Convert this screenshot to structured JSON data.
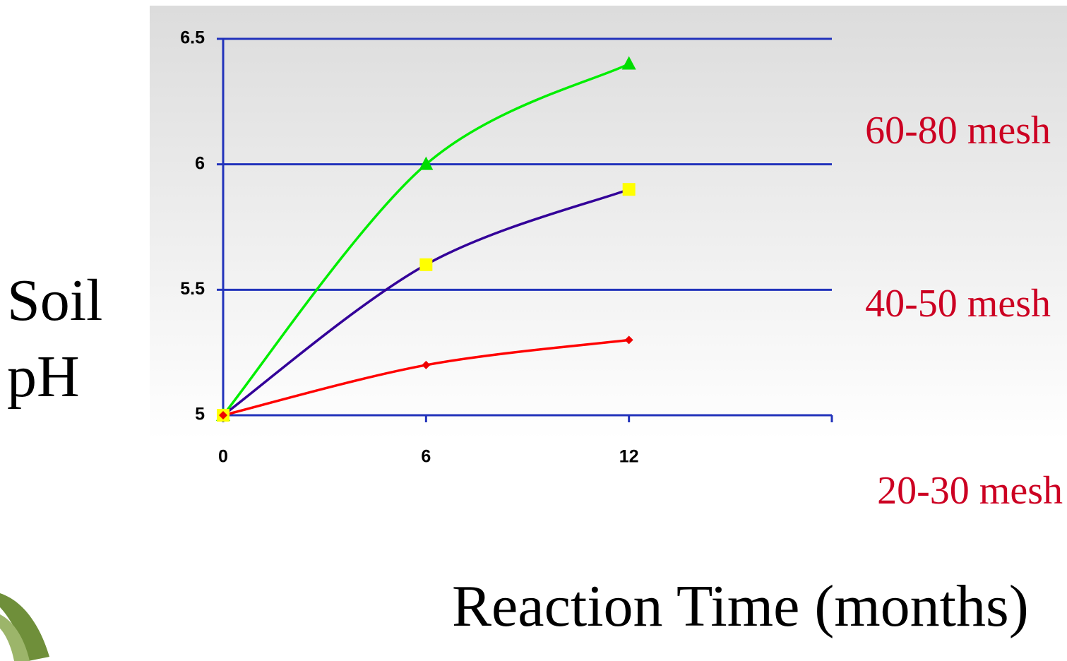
{
  "chart_data": {
    "type": "line",
    "xlabel": "Reaction Time (months)",
    "ylabel": "Soil pH",
    "x": [
      0,
      6,
      12
    ],
    "xlim": [
      0,
      18
    ],
    "xticks": [
      0,
      6,
      12
    ],
    "ylim": [
      5,
      6.5
    ],
    "yticks": [
      5,
      5.5,
      6,
      6.5
    ],
    "grid": true,
    "smooth": true,
    "legend": "right",
    "series": [
      {
        "name": "60-80 mesh",
        "color": "#00ee00",
        "marker": "triangle",
        "marker_color": "#00dd00",
        "values": [
          5,
          6,
          6.4
        ]
      },
      {
        "name": "40-50 mesh",
        "color": "#330099",
        "marker": "square",
        "marker_color": "#ffff00",
        "values": [
          5,
          5.6,
          5.9
        ]
      },
      {
        "name": "20-30 mesh",
        "color": "#ff0000",
        "marker": "diamond",
        "marker_color": "#ee0000",
        "values": [
          5,
          5.2,
          5.3
        ]
      }
    ]
  }
}
